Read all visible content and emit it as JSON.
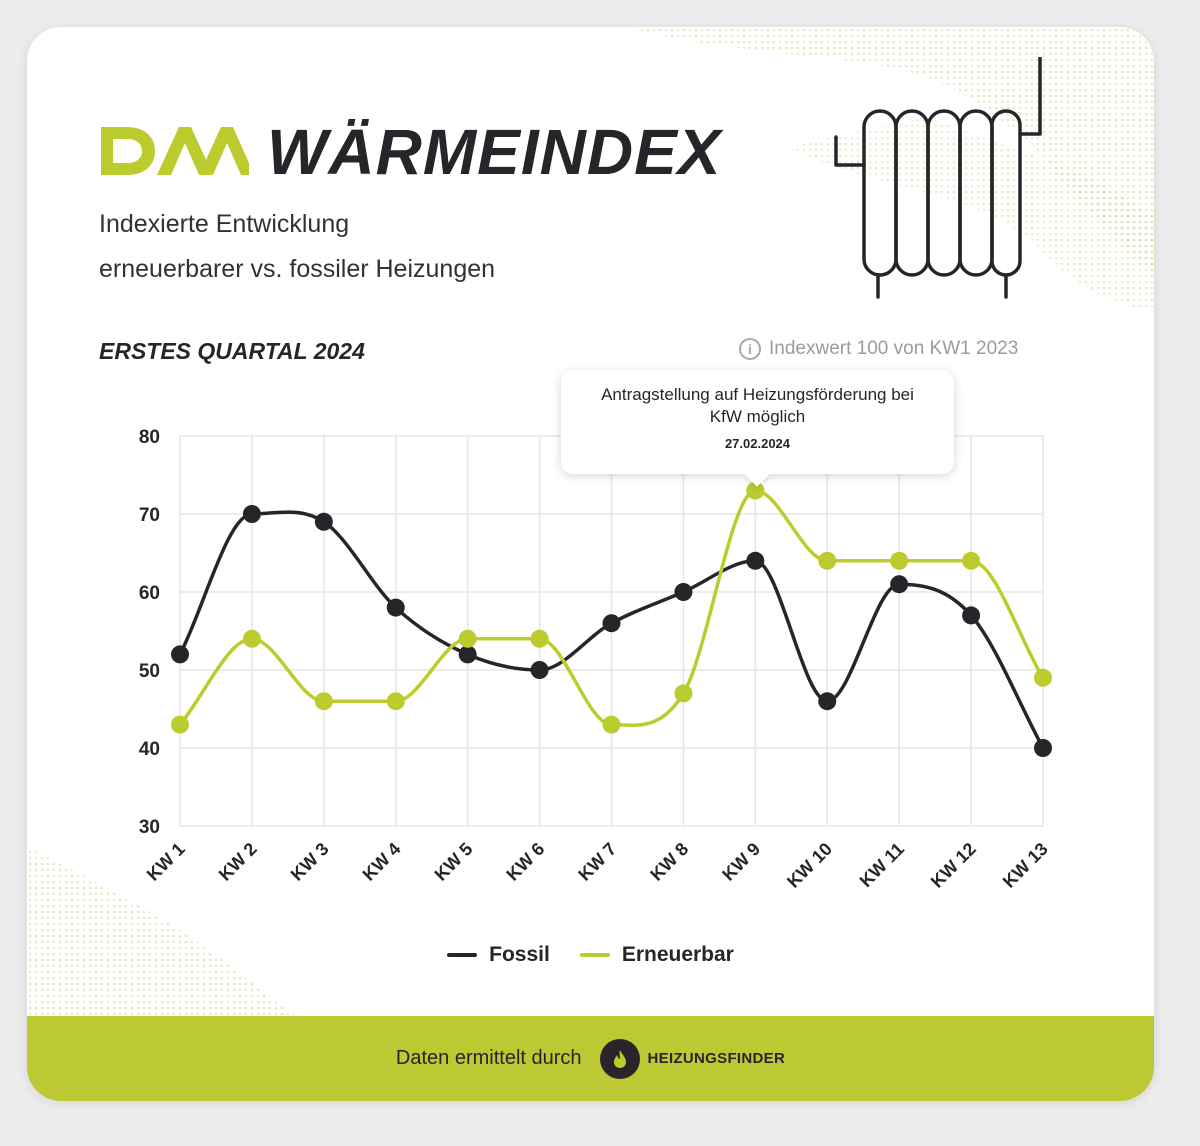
{
  "header": {
    "logo": "DAA",
    "title": "WÄRMEINDEX",
    "subtitle_line1": "Indexierte Entwicklung",
    "subtitle_line2": "erneuerbarer vs. fossiler Heizungen"
  },
  "period": "ERSTES QUARTAL 2024",
  "index_note": "Indexwert 100 von KW1 2023",
  "tooltip": {
    "text": "Antragstellung auf Heizungsförderung bei KfW möglich",
    "date": "27.02.2024",
    "category": "KW 9",
    "series": "Erneuerbar"
  },
  "legend": {
    "fossil": "Fossil",
    "erneuerbar": "Erneuerbar"
  },
  "footer": {
    "text": "Daten ermittelt durch",
    "brand": "HEIZUNGSFINDER"
  },
  "colors": {
    "fossil": "#27252a",
    "erneuerbar": "#bccb2e",
    "accent": "#bcc932",
    "grid": "#e6e6e6"
  },
  "icons": {
    "info": "info-icon",
    "radiator": "radiator-icon",
    "brand": "flame-icon"
  },
  "chart_data": {
    "type": "line",
    "title": "",
    "xlabel": "",
    "ylabel": "",
    "categories": [
      "KW 1",
      "KW 2",
      "KW 3",
      "KW 4",
      "KW 5",
      "KW 6",
      "KW 7",
      "KW 8",
      "KW 9",
      "KW 10",
      "KW 11",
      "KW 12",
      "KW 13"
    ],
    "ylim": [
      30,
      80
    ],
    "yticks": [
      30,
      40,
      50,
      60,
      70,
      80
    ],
    "grid": true,
    "legend_position": "bottom",
    "series": [
      {
        "name": "Fossil",
        "values": [
          52,
          70,
          69,
          58,
          52,
          50,
          56,
          60,
          64,
          46,
          61,
          57,
          40
        ]
      },
      {
        "name": "Erneuerbar",
        "values": [
          43,
          54,
          46,
          46,
          54,
          54,
          43,
          47,
          73,
          64,
          64,
          64,
          49
        ]
      }
    ]
  }
}
